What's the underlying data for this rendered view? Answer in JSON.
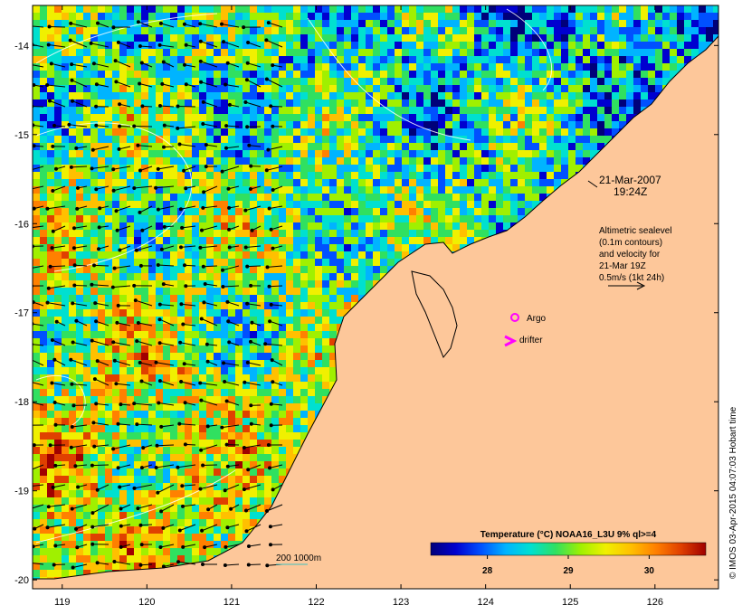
{
  "map": {
    "lon_ticks": [
      "119",
      "120",
      "121",
      "122",
      "123",
      "124",
      "125",
      "126"
    ],
    "lat_ticks": [
      "-14",
      "-15",
      "-16",
      "-17",
      "-18",
      "-19",
      "-20"
    ],
    "extent": {
      "lon": [
        118.65,
        126.75
      ],
      "lat": [
        -20.1,
        -13.55
      ]
    }
  },
  "annotation": {
    "date": "21-Mar-2007",
    "time": "19:24Z",
    "legend_lines": [
      "Altimetric sealevel",
      "(0.1m contours)",
      "and velocity for",
      "21-Mar 19Z",
      "0.5m/s (1kt 24h)"
    ],
    "argo_label": "Argo",
    "drifter_label": "drifter",
    "scale_label": "200  1000m"
  },
  "colorbar": {
    "title": "Temperature (°C) NOAA16_L3U 9% ql>=4",
    "tick_labels": [
      "28",
      "29",
      "30"
    ],
    "ticks": [
      28,
      29,
      30
    ],
    "range": [
      27.3,
      30.7
    ],
    "colors": [
      "#00007a",
      "#0000d0",
      "#0050ff",
      "#00b4ff",
      "#00e0d0",
      "#30e060",
      "#a0f000",
      "#f0f000",
      "#ffc000",
      "#ff8000",
      "#e04000",
      "#a00000"
    ]
  },
  "credit": "© IMOS 03-Apr-2015 04:07:03 Hobart time",
  "colors": {
    "land": "#fdc79a",
    "argo": "#ff00ff",
    "drifter": "#ff00ff",
    "contour": "#ffffff",
    "scale_line": "#40c0c0"
  }
}
